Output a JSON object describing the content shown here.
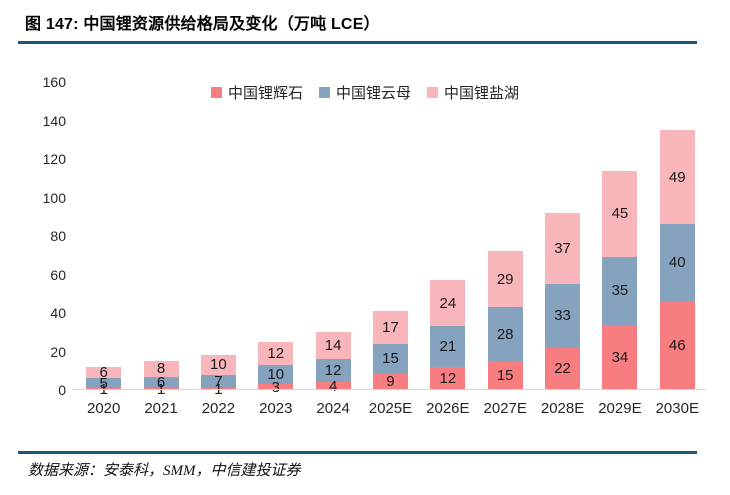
{
  "figure": {
    "title": "图 147: 中国锂资源供给格局及变化（万吨 LCE）",
    "source": "数据来源：安泰科，SMM，中信建投证券"
  },
  "colors": {
    "spodumene": "#F87D81",
    "mica": "#85A3BE",
    "salt_lake": "#F9B6BA",
    "rule_line": "#1A567E",
    "axis_line": "#D6D6D6"
  },
  "chart_data": {
    "type": "bar",
    "stacked": true,
    "title": "中国锂资源供给格局及变化（万吨 LCE）",
    "categories": [
      "2020",
      "2021",
      "2022",
      "2023",
      "2024",
      "2025E",
      "2026E",
      "2027E",
      "2028E",
      "2029E",
      "2030E"
    ],
    "series": [
      {
        "name": "中国锂辉石",
        "color_key": "spodumene",
        "values": [
          1,
          1,
          1,
          3,
          4,
          9,
          12,
          15,
          22,
          34,
          46
        ]
      },
      {
        "name": "中国锂云母",
        "color_key": "mica",
        "values": [
          5,
          6,
          7,
          10,
          12,
          15,
          21,
          28,
          33,
          35,
          40
        ]
      },
      {
        "name": "中国锂盐湖",
        "color_key": "salt_lake",
        "values": [
          6,
          8,
          10,
          12,
          14,
          17,
          24,
          29,
          37,
          45,
          49
        ]
      }
    ],
    "xlabel": "",
    "ylabel": "",
    "ylim": [
      0,
      160
    ],
    "ytick_step": 20,
    "legend_position": "top",
    "grid": false,
    "data_labels": true
  }
}
